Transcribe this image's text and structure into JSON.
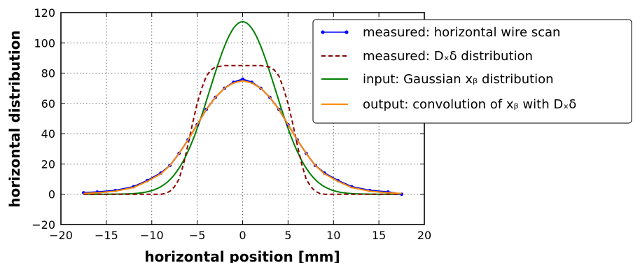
{
  "chart_data": {
    "type": "line",
    "title": "",
    "xlabel": "horizontal position [mm]",
    "ylabel": "horizontal distribution",
    "xlim": [
      -20,
      20
    ],
    "ylim": [
      -20,
      120
    ],
    "xticks": [
      -20,
      -15,
      -10,
      -5,
      0,
      5,
      10,
      15,
      20
    ],
    "yticks": [
      -20,
      0,
      20,
      40,
      60,
      80,
      100,
      120
    ],
    "xtick_labels": [
      "−20",
      "−15",
      "−10",
      "−5",
      "0",
      "5",
      "10",
      "15",
      "20"
    ],
    "ytick_labels": [
      "−20",
      "0",
      "20",
      "40",
      "60",
      "80",
      "100",
      "120"
    ],
    "grid": true,
    "legend_position": "top-right",
    "series": [
      {
        "name": "measured: horizontal wire scan",
        "color": "#0000ff",
        "style": "line-with-dots",
        "x": [
          -17.5,
          -16,
          -14,
          -12,
          -10.5,
          -9,
          -8,
          -7,
          -6,
          -5,
          -4,
          -3,
          -2,
          -1,
          0,
          1,
          2,
          3,
          4,
          5,
          6,
          7,
          8,
          9,
          10.5,
          12,
          14,
          16,
          17.5
        ],
        "y": [
          1,
          1.5,
          2.5,
          5,
          9,
          14,
          19,
          27,
          36,
          46,
          56,
          64,
          70,
          74,
          76,
          74,
          70,
          64,
          56,
          46,
          36,
          27,
          19,
          14,
          9,
          5,
          2.5,
          1.5,
          0
        ]
      },
      {
        "name": "measured: Dₓδ distribution",
        "color": "#8b0000",
        "style": "dashed",
        "x": [
          -17.5,
          -9,
          -8.5,
          -8,
          -7.5,
          -7,
          -6.5,
          -6,
          -5.5,
          -5,
          -4.5,
          -4,
          -3.5,
          -3,
          -2,
          0,
          2,
          3,
          3.5,
          4,
          4.5,
          5,
          5.5,
          6,
          6.5,
          7,
          7.5,
          8,
          8.5,
          9,
          17.5
        ],
        "y": [
          0,
          0,
          0.5,
          2,
          5,
          10,
          20,
          33,
          47,
          60,
          70,
          78,
          82,
          84,
          85,
          85,
          85,
          84,
          82,
          78,
          70,
          60,
          47,
          33,
          20,
          10,
          5,
          2,
          0.5,
          0,
          0
        ]
      },
      {
        "name": "input: Gaussian xᵦ distribution",
        "color": "#008000",
        "style": "solid",
        "gaussian": {
          "amplitude": 114,
          "sigma": 3.6,
          "xmin": -17.5,
          "xmax": 17.5
        }
      },
      {
        "name": "output: convolution of xᵦ with Dₓδ",
        "color": "#ff8c00",
        "style": "solid",
        "x": [
          -17.5,
          -16,
          -14,
          -12,
          -10.5,
          -9,
          -8,
          -7,
          -6,
          -5,
          -4,
          -3,
          -2,
          -1,
          0,
          1,
          2,
          3,
          4,
          5,
          6,
          7,
          8,
          9,
          10.5,
          12,
          14,
          16,
          17.5
        ],
        "y": [
          0.5,
          1,
          2,
          4.5,
          8.5,
          13.5,
          19,
          27,
          36,
          46,
          56,
          64,
          70,
          73.5,
          75,
          73.5,
          70,
          64,
          56,
          46,
          36,
          27,
          19,
          13.5,
          8.5,
          4.5,
          2,
          1,
          0.5
        ]
      }
    ]
  }
}
